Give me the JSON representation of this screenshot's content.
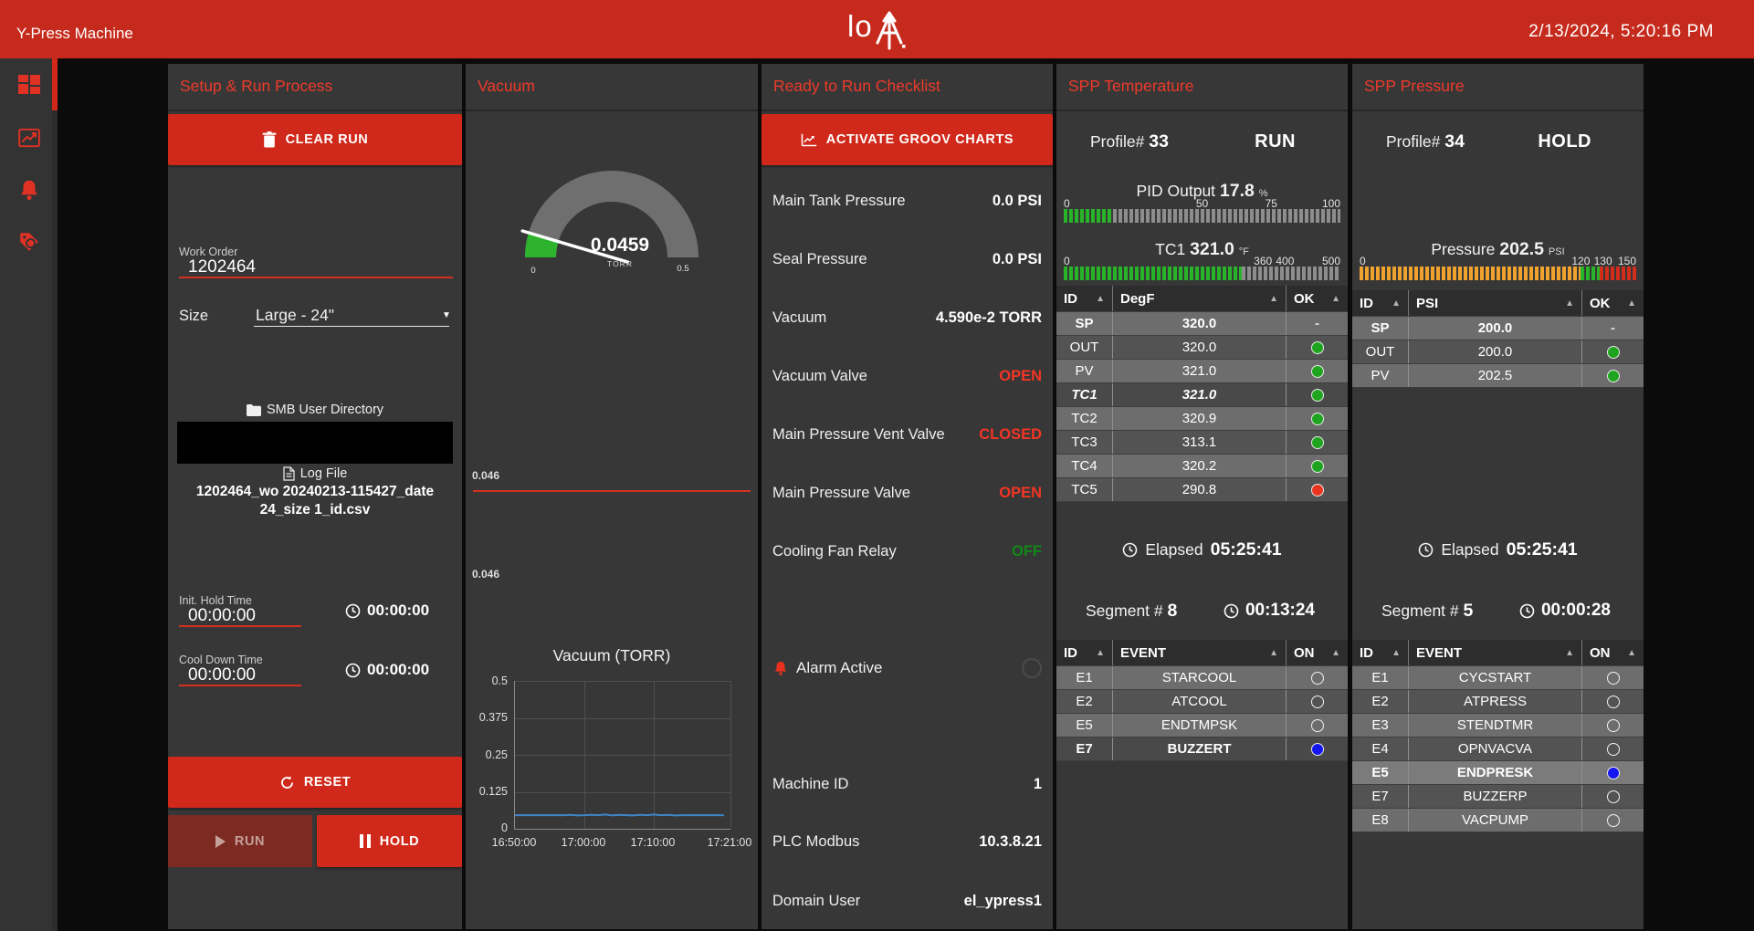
{
  "topbar": {
    "title": "Y-Press Machine",
    "logo_text": "lo",
    "datetime": "2/13/2024, 5:20:16 PM"
  },
  "colors": {
    "topbar_red": "#c52a1c",
    "button_red": "#d0281a",
    "panel_title_red": "#ee3a2a",
    "status_open_red": "#f23524",
    "status_off_green": "#0f8818",
    "bar_green": "#28b428",
    "bar_orange": "#f0a22e",
    "bar_red": "#d22c1a",
    "led_gray": "#8d8d8d",
    "dot_green": "#1ea41e",
    "dot_red": "#ea3420",
    "dot_blue": "#1515f0",
    "chart_line_blue": "#3f86c9"
  },
  "setup": {
    "title": "Setup & Run Process",
    "clear_run_label": "CLEAR RUN",
    "reset_label": "RESET",
    "run_label": "RUN",
    "hold_label": "HOLD",
    "work_order": {
      "label": "Work Order",
      "value": "1202464"
    },
    "size": {
      "label": "Size",
      "value": "Large - 24\""
    },
    "smb_label": "SMB User Directory",
    "log_file_label": "Log File",
    "log_file_name": "1202464_wo 20240213-115427_date 24_size 1_id.csv",
    "init_hold": {
      "label": "Init. Hold Time",
      "value": "00:00:00",
      "elapsed": "00:00:00"
    },
    "cool_down": {
      "label": "Cool Down Time",
      "value": "00:00:00",
      "elapsed": "00:00:00"
    }
  },
  "vacuum": {
    "title": "Vacuum",
    "gauge": {
      "value": "0.0459",
      "unit": "TORR",
      "min_label": "0",
      "max_label": "0.5"
    },
    "upper_marker": "0.046",
    "lower_marker": "0.046"
  },
  "checklist": {
    "title": "Ready to Run Checklist",
    "activate_button": "ACTIVATE GROOV CHARTS",
    "rows": [
      {
        "label": "Main Tank Pressure",
        "value": "0.0 PSI",
        "state": "normal"
      },
      {
        "label": "Seal Pressure",
        "value": "0.0 PSI",
        "state": "normal"
      },
      {
        "label": "Vacuum",
        "value": "4.590e-2 TORR",
        "state": "normal"
      },
      {
        "label": "Vacuum Valve",
        "value": "OPEN",
        "state": "red"
      },
      {
        "label": "Main Pressure Vent Valve",
        "value": "CLOSED",
        "state": "red"
      },
      {
        "label": "Main Pressure Valve",
        "value": "OPEN",
        "state": "red"
      },
      {
        "label": "Cooling Fan Relay",
        "value": "OFF",
        "state": "green"
      }
    ],
    "alarm_label": "Alarm Active",
    "info_rows": [
      {
        "label": "Machine ID",
        "value": "1"
      },
      {
        "label": "PLC Modbus",
        "value": "10.3.8.21"
      },
      {
        "label": "Domain User",
        "value": "el_ypress1"
      }
    ]
  },
  "spp_temperature": {
    "title": "SPP Temperature",
    "profile_label": "Profile#",
    "profile_value": "33",
    "status": "RUN",
    "pid_bar": {
      "label": "PID Output",
      "value": "17.8",
      "unit": "%",
      "fill_pct": 17.8,
      "scale": [
        "0",
        "50",
        "75",
        "100"
      ]
    },
    "tc1_bar": {
      "label": "TC1",
      "value": "321.0",
      "unit": "°F",
      "fill_pct": 64.2,
      "scale": [
        "0",
        "360",
        "400",
        "500"
      ]
    },
    "table": {
      "headers": [
        "ID",
        "DegF",
        "OK"
      ],
      "rows": [
        {
          "id": "SP",
          "value": "320.0",
          "ok": "-"
        },
        {
          "id": "OUT",
          "value": "320.0",
          "ok": "green"
        },
        {
          "id": "PV",
          "value": "321.0",
          "ok": "green"
        },
        {
          "id": "TC1",
          "value": "321.0",
          "ok": "green"
        },
        {
          "id": "TC2",
          "value": "320.9",
          "ok": "green"
        },
        {
          "id": "TC3",
          "value": "313.1",
          "ok": "green"
        },
        {
          "id": "TC4",
          "value": "320.2",
          "ok": "green"
        },
        {
          "id": "TC5",
          "value": "290.8",
          "ok": "red"
        }
      ]
    },
    "elapsed_label": "Elapsed",
    "elapsed_value": "05:25:41",
    "segment_label": "Segment #",
    "segment_value": "8",
    "segment_time": "00:13:24",
    "events": {
      "headers": [
        "ID",
        "EVENT",
        "ON"
      ],
      "rows": [
        {
          "id": "E1",
          "event": "STARCOOL",
          "on": false
        },
        {
          "id": "E2",
          "event": "ATCOOL",
          "on": false
        },
        {
          "id": "E5",
          "event": "ENDTMPSK",
          "on": false
        },
        {
          "id": "E7",
          "event": "BUZZERT",
          "on": true
        }
      ]
    }
  },
  "spp_pressure": {
    "title": "SPP Pressure",
    "profile_label": "Profile#",
    "profile_value": "34",
    "status": "HOLD",
    "pressure_bar": {
      "label": "Pressure",
      "value": "202.5",
      "unit": "PSI",
      "scale": [
        "0",
        "120",
        "130",
        "150"
      ],
      "zones": [
        {
          "color": "#f0a22e",
          "from_pct": 0,
          "to_pct": 80
        },
        {
          "color": "#28b428",
          "from_pct": 80,
          "to_pct": 86.7
        },
        {
          "color": "#d22c1a",
          "from_pct": 86.7,
          "to_pct": 100
        }
      ]
    },
    "table": {
      "headers": [
        "ID",
        "PSI",
        "OK"
      ],
      "rows": [
        {
          "id": "SP",
          "value": "200.0",
          "ok": "-"
        },
        {
          "id": "OUT",
          "value": "200.0",
          "ok": "green"
        },
        {
          "id": "PV",
          "value": "202.5",
          "ok": "green"
        }
      ]
    },
    "elapsed_label": "Elapsed",
    "elapsed_value": "05:25:41",
    "segment_label": "Segment #",
    "segment_value": "5",
    "segment_time": "00:00:28",
    "events": {
      "headers": [
        "ID",
        "EVENT",
        "ON"
      ],
      "rows": [
        {
          "id": "E1",
          "event": "CYCSTART",
          "on": false
        },
        {
          "id": "E2",
          "event": "ATPRESS",
          "on": false
        },
        {
          "id": "E3",
          "event": "STENDTMR",
          "on": false
        },
        {
          "id": "E4",
          "event": "OPNVACVA",
          "on": false
        },
        {
          "id": "E5",
          "event": "ENDPRESK",
          "on": true
        },
        {
          "id": "E7",
          "event": "BUZZERP",
          "on": false
        },
        {
          "id": "E8",
          "event": "VACPUMP",
          "on": false
        }
      ]
    }
  },
  "chart_data": {
    "type": "line",
    "title": "Vacuum (TORR)",
    "xlabel": "",
    "ylabel": "",
    "ylim": [
      0,
      0.5
    ],
    "y_ticks": [
      "0",
      "0.125",
      "0.25",
      "0.375",
      "0.5"
    ],
    "x_ticks": [
      "16:50:00",
      "17:00:00",
      "17:10:00",
      "17:21:00"
    ],
    "x_tick_pct": [
      0,
      32.3,
      64.5,
      100
    ],
    "grid": true,
    "legend": false,
    "series": [
      {
        "name": "Vacuum",
        "color": "#3f86c9",
        "x_pct": [
          0,
          3.2,
          6.5,
          9.7,
          12.9,
          16.1,
          19.4,
          22.6,
          25.8,
          29,
          32.3,
          35.5,
          38.7,
          41.9,
          45.2,
          48.4,
          51.6,
          54.8,
          58.1,
          61.3,
          64.5,
          67.7,
          71,
          74.2,
          77.4,
          80.6,
          83.9,
          87.1,
          90.3,
          93.5,
          96,
          97
        ],
        "values": [
          0.046,
          0.046,
          0.046,
          0.046,
          0.046,
          0.046,
          0.046,
          0.046,
          0.047,
          0.045,
          0.046,
          0.047,
          0.046,
          0.048,
          0.045,
          0.047,
          0.046,
          0.045,
          0.047,
          0.046,
          0.048,
          0.046,
          0.047,
          0.045,
          0.046,
          0.046,
          0.046,
          0.046,
          0.046,
          0.046,
          0.046,
          0.046
        ]
      }
    ]
  }
}
